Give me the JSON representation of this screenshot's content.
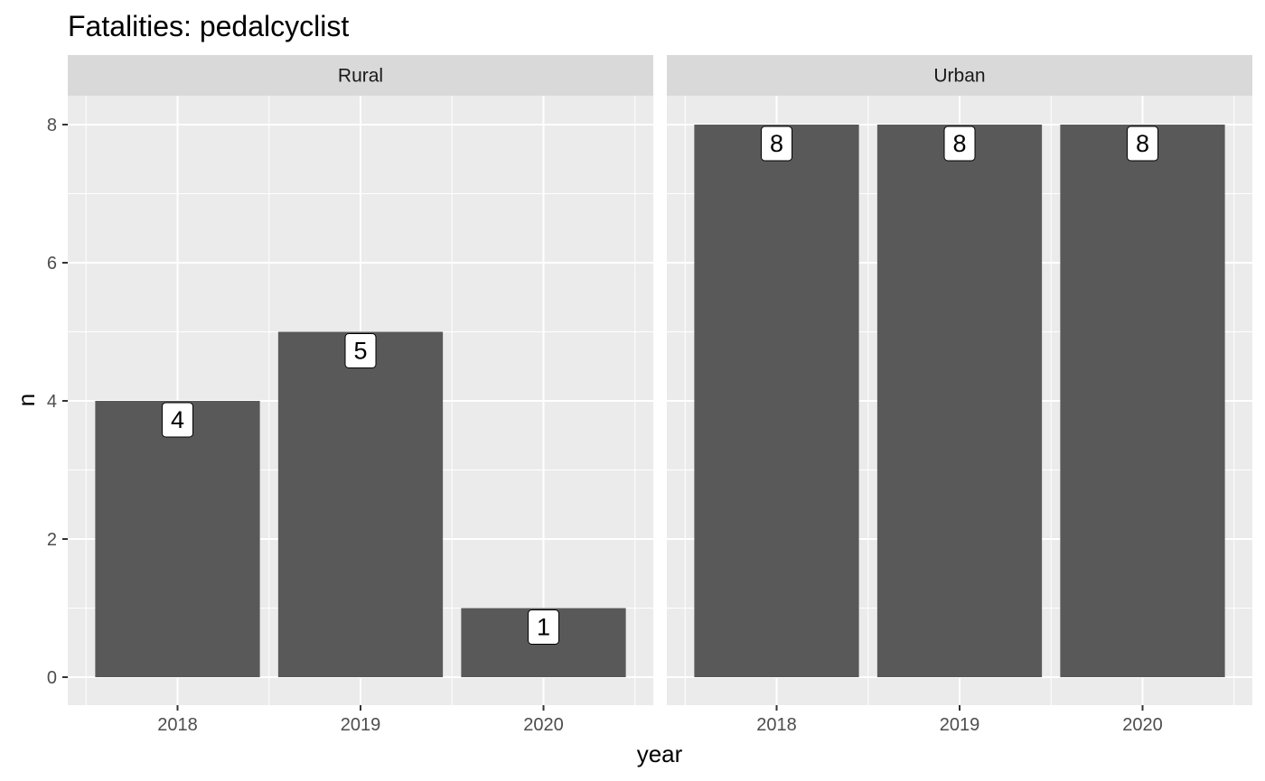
{
  "chart_data": {
    "type": "bar",
    "title": "Fatalities: pedalcyclist",
    "xlabel": "year",
    "ylabel": "n",
    "ylim": [
      0,
      8
    ],
    "yticks": [
      0,
      2,
      4,
      6,
      8
    ],
    "categories": [
      "2018",
      "2019",
      "2020"
    ],
    "grid": true,
    "data_labels": true,
    "facets": [
      {
        "name": "Rural",
        "values": [
          4,
          5,
          1
        ]
      },
      {
        "name": "Urban",
        "values": [
          8,
          8,
          8
        ]
      }
    ]
  },
  "colors": {
    "panel_background": "#ebebeb",
    "strip_background": "#d9d9d9",
    "grid_line": "#ffffff",
    "bar_fill": "#595959",
    "label_fill": "#ffffff",
    "label_border": "#000000"
  }
}
